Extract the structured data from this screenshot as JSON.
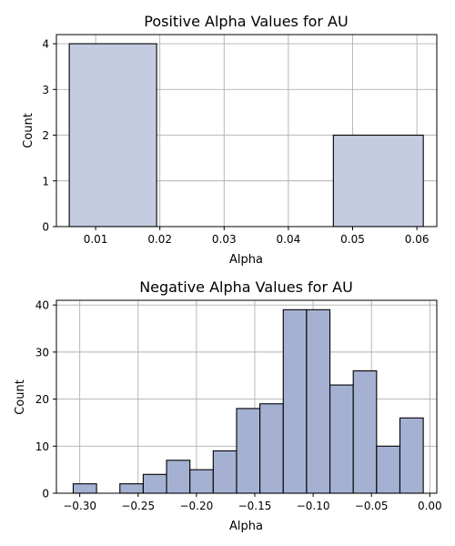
{
  "chart_data": [
    {
      "type": "bar",
      "title": "Positive Alpha Values for AU",
      "xlabel": "Alpha",
      "ylabel": "Count",
      "xlim": [
        0.0039,
        0.0631
      ],
      "ylim": [
        0,
        4.2
      ],
      "xticks": [
        0.01,
        0.02,
        0.03,
        0.04,
        0.05,
        0.06
      ],
      "xtick_labels": [
        "0.01",
        "0.02",
        "0.03",
        "0.04",
        "0.05",
        "0.06"
      ],
      "yticks": [
        0,
        1,
        2,
        3,
        4
      ],
      "ytick_labels": [
        "0",
        "1",
        "2",
        "3",
        "4"
      ],
      "grid": true,
      "bar_color": "#c3cce0",
      "bins": [
        {
          "x0": 0.0059,
          "x1": 0.0195,
          "count": 4
        },
        {
          "x0": 0.0195,
          "x1": 0.0333,
          "count": 0
        },
        {
          "x0": 0.0333,
          "x1": 0.047,
          "count": 0
        },
        {
          "x0": 0.047,
          "x1": 0.061,
          "count": 2
        }
      ]
    },
    {
      "type": "bar",
      "title": "Negative Alpha Values for AU",
      "xlabel": "Alpha",
      "ylabel": "Count",
      "xlim": [
        -0.32,
        0.006
      ],
      "ylim": [
        0,
        41
      ],
      "xticks": [
        -0.3,
        -0.25,
        -0.2,
        -0.15,
        -0.1,
        -0.05,
        0.0
      ],
      "xtick_labels": [
        "−0.30",
        "−0.25",
        "−0.20",
        "−0.15",
        "−0.10",
        "−0.05",
        "0.00"
      ],
      "yticks": [
        0,
        10,
        20,
        30,
        40
      ],
      "ytick_labels": [
        "0",
        "10",
        "20",
        "30",
        "40"
      ],
      "grid": true,
      "bar_color": "#a5b1d2",
      "bins": [
        {
          "x0": -0.3056,
          "x1": -0.2856,
          "count": 2
        },
        {
          "x0": -0.2856,
          "x1": -0.2656,
          "count": 0
        },
        {
          "x0": -0.2656,
          "x1": -0.2456,
          "count": 2
        },
        {
          "x0": -0.2456,
          "x1": -0.2256,
          "count": 4
        },
        {
          "x0": -0.2256,
          "x1": -0.2056,
          "count": 7
        },
        {
          "x0": -0.2056,
          "x1": -0.1856,
          "count": 5
        },
        {
          "x0": -0.1856,
          "x1": -0.1656,
          "count": 9
        },
        {
          "x0": -0.1656,
          "x1": -0.1456,
          "count": 18
        },
        {
          "x0": -0.1456,
          "x1": -0.1256,
          "count": 19
        },
        {
          "x0": -0.1256,
          "x1": -0.1056,
          "count": 39
        },
        {
          "x0": -0.1056,
          "x1": -0.0856,
          "count": 39
        },
        {
          "x0": -0.0856,
          "x1": -0.0656,
          "count": 23
        },
        {
          "x0": -0.0656,
          "x1": -0.0456,
          "count": 26
        },
        {
          "x0": -0.0456,
          "x1": -0.0256,
          "count": 10
        },
        {
          "x0": -0.0256,
          "x1": -0.0056,
          "count": 16
        }
      ]
    }
  ]
}
